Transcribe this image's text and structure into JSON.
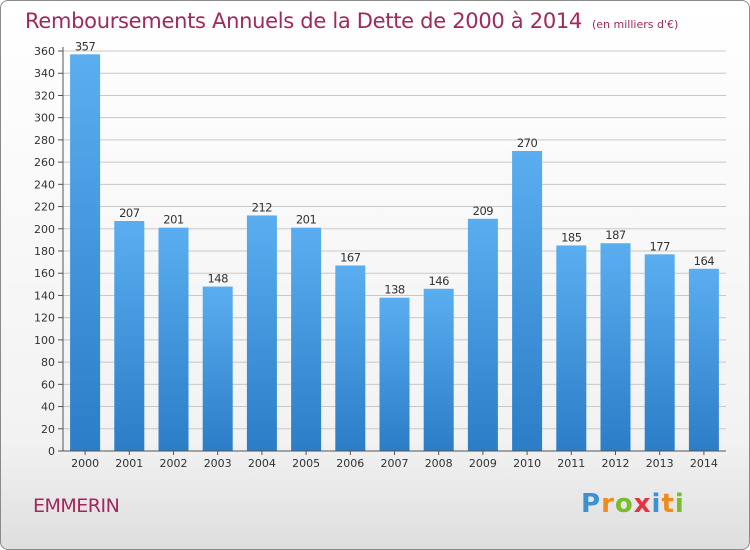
{
  "header": {
    "title": "Remboursements Annuels de la Dette de 2000 à 2014",
    "unit": "(en milliers d'€)"
  },
  "footer": {
    "city": "EMMERIN",
    "logo_parts": [
      "P",
      "r",
      "o",
      "x",
      "i",
      "t",
      "i"
    ],
    "logo_text": "Proxiti"
  },
  "colors": {
    "bar_top": "#5aaef0",
    "bar_bottom": "#2b7dc7",
    "grid": "#c8c8c8",
    "text": "#333333",
    "title": "#a0285c"
  },
  "chart_data": {
    "type": "bar",
    "title": "Remboursements Annuels de la Dette de 2000 à 2014",
    "xlabel": "",
    "ylabel": "",
    "ylim": [
      0,
      360
    ],
    "ytick_step": 20,
    "grid": true,
    "categories": [
      "2000",
      "2001",
      "2002",
      "2003",
      "2004",
      "2005",
      "2006",
      "2007",
      "2008",
      "2009",
      "2010",
      "2011",
      "2012",
      "2013",
      "2014"
    ],
    "values": [
      357,
      207,
      201,
      148,
      212,
      201,
      167,
      138,
      146,
      209,
      270,
      185,
      187,
      177,
      164
    ]
  }
}
